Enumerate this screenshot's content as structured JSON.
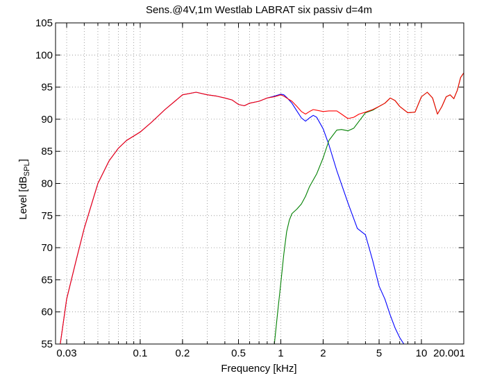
{
  "chart_data": {
    "type": "line",
    "title": "Sens.@4V,1m Westlab LABRAT six passiv d=4m",
    "xlabel": "Frequency [kHz]",
    "ylabel": "Level [dB",
    "ylabel_sub": "SPL",
    "ylabel_close": "]",
    "x_scale": "log",
    "xlim": [
      0.025,
      20.001
    ],
    "ylim": [
      55,
      105
    ],
    "grid": true,
    "x_ticks": [
      {
        "value": 0.03,
        "label": "0.03"
      },
      {
        "value": 0.1,
        "label": "0.1"
      },
      {
        "value": 0.2,
        "label": "0.2"
      },
      {
        "value": 0.5,
        "label": "0.5"
      },
      {
        "value": 1,
        "label": "1"
      },
      {
        "value": 2,
        "label": "2"
      },
      {
        "value": 5,
        "label": "5"
      },
      {
        "value": 10,
        "label": "10"
      },
      {
        "value": 20.001,
        "label": "20.001"
      }
    ],
    "y_ticks": [
      55,
      60,
      65,
      70,
      75,
      80,
      85,
      90,
      95,
      100,
      105
    ],
    "series": [
      {
        "color": "#0000ff",
        "x": [
          0.027,
          0.03,
          0.035,
          0.04,
          0.05,
          0.06,
          0.07,
          0.08,
          0.1,
          0.12,
          0.15,
          0.2,
          0.25,
          0.3,
          0.35,
          0.4,
          0.45,
          0.5,
          0.55,
          0.6,
          0.7,
          0.8,
          0.9,
          1.0,
          1.05,
          1.1,
          1.2,
          1.3,
          1.4,
          1.5,
          1.6,
          1.7,
          1.8,
          2.0,
          2.2,
          2.5,
          3.0,
          3.5,
          4.0,
          4.5,
          5.0,
          5.5,
          6.0,
          6.5,
          7.0,
          7.5
        ],
        "y": [
          55,
          62,
          68,
          73,
          80,
          83.5,
          85.5,
          86.7,
          88,
          89.5,
          91.5,
          93.8,
          94.2,
          93.8,
          93.6,
          93.3,
          93,
          92.3,
          92.1,
          92.5,
          92.8,
          93.3,
          93.6,
          93.9,
          93.8,
          93.4,
          92.5,
          91.3,
          90.2,
          89.7,
          90.2,
          90.6,
          90.3,
          88.5,
          86,
          82,
          77,
          73,
          72,
          68,
          64,
          62,
          59.5,
          57.5,
          56,
          55
        ]
      },
      {
        "color": "#008000",
        "x": [
          0.9,
          0.95,
          1.0,
          1.05,
          1.1,
          1.15,
          1.2,
          1.3,
          1.4,
          1.5,
          1.6,
          1.8,
          2.0,
          2.2,
          2.5,
          2.7,
          3.0,
          3.3,
          3.6,
          4.0,
          4.5,
          5.0,
          5.5,
          6.0,
          6.5,
          7.0,
          8.0,
          9.0,
          10.0,
          11.0,
          12.0,
          13.0,
          14.0,
          15.0,
          16.0,
          17.0,
          18.0,
          19.0,
          20.001
        ],
        "y": [
          55,
          60,
          64.5,
          69,
          72.5,
          74.3,
          75.3,
          76,
          76.8,
          78,
          79.5,
          81.5,
          84,
          86.7,
          88.3,
          88.4,
          88.2,
          88.6,
          89.7,
          91,
          91.4,
          92,
          92.5,
          93.3,
          92.9,
          92,
          91,
          91.1,
          93.5,
          94.2,
          93.3,
          90.8,
          92,
          93.5,
          93.8,
          93.2,
          94.5,
          96.5,
          97.2
        ]
      },
      {
        "color": "#ff0000",
        "x": [
          0.027,
          0.03,
          0.035,
          0.04,
          0.05,
          0.06,
          0.07,
          0.08,
          0.1,
          0.12,
          0.15,
          0.2,
          0.25,
          0.3,
          0.35,
          0.4,
          0.45,
          0.5,
          0.55,
          0.6,
          0.7,
          0.8,
          0.9,
          1.0,
          1.05,
          1.1,
          1.2,
          1.3,
          1.4,
          1.5,
          1.6,
          1.7,
          1.8,
          2.0,
          2.2,
          2.5,
          2.7,
          3.0,
          3.3,
          3.6,
          4.0,
          4.5,
          5.0,
          5.5,
          6.0,
          6.5,
          7.0,
          8.0,
          9.0,
          10.0,
          11.0,
          12.0,
          13.0,
          14.0,
          15.0,
          16.0,
          17.0,
          18.0,
          19.0,
          20.001
        ],
        "y": [
          55,
          62,
          68,
          73,
          80,
          83.5,
          85.5,
          86.7,
          88,
          89.5,
          91.5,
          93.8,
          94.2,
          93.8,
          93.6,
          93.3,
          93,
          92.3,
          92.1,
          92.5,
          92.8,
          93.3,
          93.5,
          93.8,
          93.6,
          93.3,
          92.8,
          92,
          91.2,
          90.8,
          91.2,
          91.5,
          91.4,
          91.2,
          91.3,
          91.3,
          90.8,
          90.1,
          90.3,
          90.8,
          91.1,
          91.5,
          92,
          92.5,
          93.3,
          92.9,
          92,
          91,
          91.1,
          93.5,
          94.2,
          93.3,
          90.8,
          92,
          93.5,
          93.8,
          93.2,
          94.5,
          96.5,
          97.2
        ]
      }
    ]
  }
}
